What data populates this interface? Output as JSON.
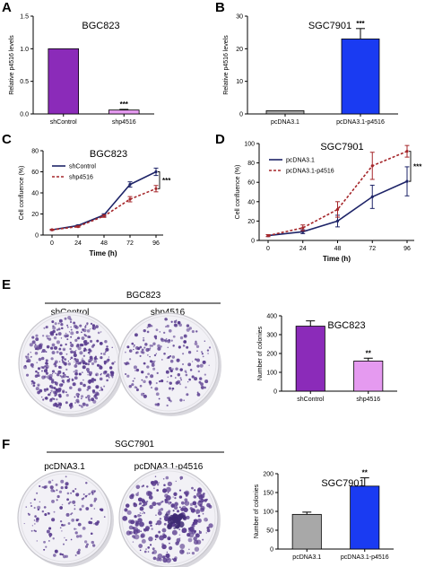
{
  "panel_letters": [
    "A",
    "B",
    "C",
    "D",
    "E",
    "F"
  ],
  "colors": {
    "purple": "#8B2BB9",
    "light_purple": "#E59AF0",
    "gray": "#A8A8A8",
    "blue": "#1A3BF2",
    "navy": "#1E2468",
    "red_dashed": "#A5262A",
    "plate_bg": "#f2f1f6",
    "colony": "#5a3d8f"
  },
  "plates_e": {
    "group": "BGC823",
    "labels": [
      "shControl",
      "shp4516"
    ]
  },
  "plates_f": {
    "group": "SGC7901",
    "labels": [
      "pcDNA3.1",
      "pcDNA3.1-p4516"
    ]
  },
  "chart_data": [
    {
      "id": "A",
      "type": "bar",
      "title": "BGC823",
      "ylabel": "Relative p4516 levels",
      "categories": [
        "shControl",
        "shp4516"
      ],
      "values": [
        1.0,
        0.06
      ],
      "errors": [
        0,
        0.01
      ],
      "ylim": [
        0,
        1.5
      ],
      "yticks": [
        "0.0",
        "0.5",
        "1.0",
        "1.5"
      ],
      "bar_colors": [
        "#8B2BB9",
        "#E59AF0"
      ],
      "significance": [
        {
          "index": 1,
          "label": "***"
        }
      ]
    },
    {
      "id": "B",
      "type": "bar",
      "title": "SGC7901",
      "ylabel": "Relative p4516 levels",
      "categories": [
        "pcDNA3.1",
        "pcDNA3.1-p4516"
      ],
      "values": [
        1.0,
        23.0
      ],
      "errors": [
        0,
        3.2
      ],
      "ylim": [
        0,
        30
      ],
      "yticks": [
        "0",
        "10",
        "20",
        "30"
      ],
      "bar_colors": [
        "#A8A8A8",
        "#1A3BF2"
      ],
      "significance": [
        {
          "index": 1,
          "label": "***"
        }
      ]
    },
    {
      "id": "C",
      "type": "line",
      "title": "BGC823",
      "xlabel": "Time (h)",
      "ylabel": "Cell confluence (%)",
      "x": [
        0,
        24,
        48,
        72,
        96
      ],
      "xticks": [
        "0",
        "24",
        "48",
        "72",
        "96"
      ],
      "ylim": [
        0,
        80
      ],
      "yticks": [
        "0",
        "20",
        "40",
        "60",
        "80"
      ],
      "series": [
        {
          "name": "shControl",
          "values": [
            5,
            9,
            19,
            48,
            60
          ],
          "errors": [
            0.5,
            0.6,
            1.2,
            2.5,
            3.5
          ],
          "color": "#1E2468",
          "dashed": false
        },
        {
          "name": "shp4516",
          "values": [
            5,
            8,
            18,
            34,
            44
          ],
          "errors": [
            0.5,
            0.6,
            1.2,
            2.5,
            3.0
          ],
          "color": "#A5262A",
          "dashed": true
        }
      ],
      "significance": "***"
    },
    {
      "id": "D",
      "type": "line",
      "title": "SGC7901",
      "xlabel": "Time (h)",
      "ylabel": "Cell confluence (%)",
      "x": [
        0,
        24,
        48,
        72,
        96
      ],
      "xticks": [
        "0",
        "24",
        "48",
        "72",
        "96"
      ],
      "ylim": [
        0,
        100
      ],
      "yticks": [
        "0",
        "20",
        "40",
        "60",
        "80",
        "100"
      ],
      "series": [
        {
          "name": "pcDNA3.1",
          "values": [
            5,
            9,
            20,
            45,
            61
          ],
          "errors": [
            1,
            2,
            6,
            12,
            15
          ],
          "color": "#1E2468",
          "dashed": false
        },
        {
          "name": "pcDNA3.1-p4516",
          "values": [
            5,
            13,
            32,
            77,
            92
          ],
          "errors": [
            1,
            3,
            8,
            14,
            6
          ],
          "color": "#A5262A",
          "dashed": true
        }
      ],
      "significance": "***"
    },
    {
      "id": "E",
      "type": "bar",
      "title": "BGC823",
      "ylabel": "Number of colonies",
      "categories": [
        "shControl",
        "shp4516"
      ],
      "values": [
        345,
        160
      ],
      "errors": [
        28,
        15
      ],
      "ylim": [
        0,
        400
      ],
      "yticks": [
        "0",
        "100",
        "200",
        "300",
        "400"
      ],
      "bar_colors": [
        "#8B2BB9",
        "#E59AF0"
      ],
      "significance": [
        {
          "index": 1,
          "label": "**"
        }
      ]
    },
    {
      "id": "F",
      "type": "bar",
      "title": "SGC7901",
      "ylabel": "Number of colonies",
      "categories": [
        "pcDNA3.1",
        "pcDNA3.1-p4516"
      ],
      "values": [
        92,
        167
      ],
      "errors": [
        6,
        22
      ],
      "ylim": [
        0,
        200
      ],
      "yticks": [
        "0",
        "50",
        "100",
        "150",
        "200"
      ],
      "bar_colors": [
        "#A8A8A8",
        "#1A3BF2"
      ],
      "significance": [
        {
          "index": 1,
          "label": "**"
        }
      ]
    }
  ]
}
